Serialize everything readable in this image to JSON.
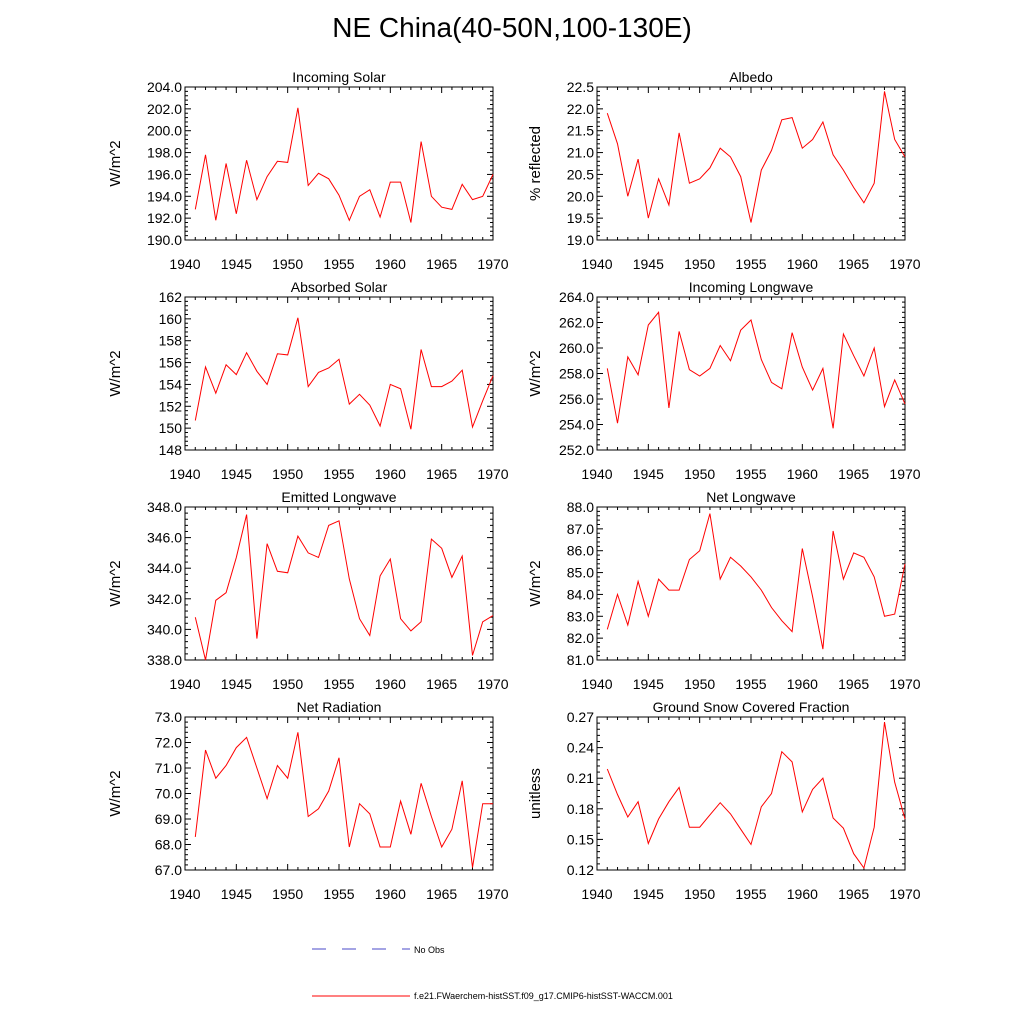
{
  "figure": {
    "title": "NE China(40-50N,100-130E)",
    "line_color": "#ff0000",
    "obs_color": "#4a4ac8"
  },
  "legend": {
    "obs_label": "No Obs",
    "model_label": "f.e21.FWaerchem-histSST.f09_g17.CMIP6-histSST-WACCM.001"
  },
  "chart_data": [
    {
      "type": "line",
      "title": "Incoming Solar",
      "ylabel": "W/m^2",
      "xlim": [
        1940,
        1970
      ],
      "ylim": [
        190,
        204
      ],
      "yticks": [
        190,
        192,
        194,
        196,
        198,
        200,
        202,
        204
      ],
      "ytick_labels": [
        "190.0",
        "192.0",
        "194.0",
        "196.0",
        "198.0",
        "200.0",
        "202.0",
        "204.0"
      ],
      "xticks": [
        1940,
        1945,
        1950,
        1955,
        1960,
        1965,
        1970
      ],
      "x": [
        1941,
        1942,
        1943,
        1944,
        1945,
        1946,
        1947,
        1948,
        1949,
        1950,
        1951,
        1952,
        1953,
        1954,
        1955,
        1956,
        1957,
        1958,
        1959,
        1960,
        1961,
        1962,
        1963,
        1964,
        1965,
        1966,
        1967,
        1968,
        1969,
        1970
      ],
      "values": [
        192.8,
        197.8,
        191.8,
        197.0,
        192.4,
        197.3,
        193.7,
        195.8,
        197.2,
        197.1,
        202.1,
        195.0,
        196.1,
        195.6,
        194.1,
        191.8,
        194.0,
        194.6,
        192.1,
        195.3,
        195.3,
        191.6,
        199.0,
        194.0,
        193.0,
        192.8,
        195.1,
        193.7,
        194.0,
        196.0
      ]
    },
    {
      "type": "line",
      "title": "Albedo",
      "ylabel": "% reflected",
      "xlim": [
        1940,
        1970
      ],
      "ylim": [
        19.0,
        22.5
      ],
      "yticks": [
        19.0,
        19.5,
        20.0,
        20.5,
        21.0,
        21.5,
        22.0,
        22.5
      ],
      "ytick_labels": [
        "19.0",
        "19.5",
        "20.0",
        "20.5",
        "21.0",
        "21.5",
        "22.0",
        "22.5"
      ],
      "xticks": [
        1940,
        1945,
        1950,
        1955,
        1960,
        1965,
        1970
      ],
      "x": [
        1941,
        1942,
        1943,
        1944,
        1945,
        1946,
        1947,
        1948,
        1949,
        1950,
        1951,
        1952,
        1953,
        1954,
        1955,
        1956,
        1957,
        1958,
        1959,
        1960,
        1961,
        1962,
        1963,
        1964,
        1965,
        1966,
        1967,
        1968,
        1969,
        1970
      ],
      "values": [
        21.9,
        21.2,
        20.0,
        20.85,
        19.5,
        20.4,
        19.8,
        21.45,
        20.3,
        20.4,
        20.65,
        21.1,
        20.9,
        20.45,
        19.4,
        20.6,
        21.05,
        21.75,
        21.8,
        21.1,
        21.3,
        21.7,
        20.95,
        20.6,
        20.2,
        19.85,
        20.3,
        22.4,
        21.3,
        20.9
      ]
    },
    {
      "type": "line",
      "title": "Absorbed Solar",
      "ylabel": "W/m^2",
      "xlim": [
        1940,
        1970
      ],
      "ylim": [
        148,
        162
      ],
      "yticks": [
        148,
        150,
        152,
        154,
        156,
        158,
        160,
        162
      ],
      "ytick_labels": [
        "148",
        "150",
        "152",
        "154",
        "156",
        "158",
        "160",
        "162"
      ],
      "xticks": [
        1940,
        1945,
        1950,
        1955,
        1960,
        1965,
        1970
      ],
      "x": [
        1941,
        1942,
        1943,
        1944,
        1945,
        1946,
        1947,
        1948,
        1949,
        1950,
        1951,
        1952,
        1953,
        1954,
        1955,
        1956,
        1957,
        1958,
        1959,
        1960,
        1961,
        1962,
        1963,
        1964,
        1965,
        1966,
        1967,
        1968,
        1969,
        1970
      ],
      "values": [
        150.7,
        155.6,
        153.2,
        155.8,
        154.9,
        156.9,
        155.2,
        154.0,
        156.8,
        156.7,
        160.1,
        153.8,
        155.1,
        155.5,
        156.3,
        152.2,
        153.1,
        152.1,
        150.2,
        154.0,
        153.6,
        149.9,
        157.2,
        153.8,
        153.8,
        154.3,
        155.3,
        150.1,
        152.5,
        154.8
      ]
    },
    {
      "type": "line",
      "title": "Incoming Longwave",
      "ylabel": "W/m^2",
      "xlim": [
        1940,
        1970
      ],
      "ylim": [
        252,
        264
      ],
      "yticks": [
        252,
        254,
        256,
        258,
        260,
        262,
        264
      ],
      "ytick_labels": [
        "252.0",
        "254.0",
        "256.0",
        "258.0",
        "260.0",
        "262.0",
        "264.0"
      ],
      "xticks": [
        1940,
        1945,
        1950,
        1955,
        1960,
        1965,
        1970
      ],
      "x": [
        1941,
        1942,
        1943,
        1944,
        1945,
        1946,
        1947,
        1948,
        1949,
        1950,
        1951,
        1952,
        1953,
        1954,
        1955,
        1956,
        1957,
        1958,
        1959,
        1960,
        1961,
        1962,
        1963,
        1964,
        1965,
        1966,
        1967,
        1968,
        1969,
        1970
      ],
      "values": [
        258.4,
        254.1,
        259.3,
        257.9,
        261.8,
        262.8,
        255.3,
        261.3,
        258.3,
        257.8,
        258.4,
        260.2,
        259.0,
        261.4,
        262.2,
        259.1,
        257.3,
        256.8,
        261.2,
        258.5,
        256.7,
        258.4,
        253.7,
        261.1,
        259.4,
        257.8,
        260.0,
        255.4,
        257.5,
        255.6
      ]
    },
    {
      "type": "line",
      "title": "Emitted Longwave",
      "ylabel": "W/m^2",
      "xlim": [
        1940,
        1970
      ],
      "ylim": [
        338,
        348
      ],
      "yticks": [
        338,
        340,
        342,
        344,
        346,
        348
      ],
      "ytick_labels": [
        "338.0",
        "340.0",
        "342.0",
        "344.0",
        "346.0",
        "348.0"
      ],
      "xticks": [
        1940,
        1945,
        1950,
        1955,
        1960,
        1965,
        1970
      ],
      "x": [
        1941,
        1942,
        1943,
        1944,
        1945,
        1946,
        1947,
        1948,
        1949,
        1950,
        1951,
        1952,
        1953,
        1954,
        1955,
        1956,
        1957,
        1958,
        1959,
        1960,
        1961,
        1962,
        1963,
        1964,
        1965,
        1966,
        1967,
        1968,
        1969,
        1970
      ],
      "values": [
        340.8,
        338.0,
        341.9,
        342.4,
        344.7,
        347.5,
        339.4,
        345.6,
        343.8,
        343.7,
        346.1,
        345.0,
        344.7,
        346.8,
        347.1,
        343.3,
        340.7,
        339.6,
        343.5,
        344.6,
        340.7,
        339.9,
        340.5,
        345.9,
        345.3,
        343.4,
        344.8,
        338.3,
        340.5,
        340.9
      ]
    },
    {
      "type": "line",
      "title": "Net Longwave",
      "ylabel": "W/m^2",
      "xlim": [
        1940,
        1970
      ],
      "ylim": [
        81,
        88
      ],
      "yticks": [
        81,
        82,
        83,
        84,
        85,
        86,
        87,
        88
      ],
      "ytick_labels": [
        "81.0",
        "82.0",
        "83.0",
        "84.0",
        "85.0",
        "86.0",
        "87.0",
        "88.0"
      ],
      "xticks": [
        1940,
        1945,
        1950,
        1955,
        1960,
        1965,
        1970
      ],
      "x": [
        1941,
        1942,
        1943,
        1944,
        1945,
        1946,
        1947,
        1948,
        1949,
        1950,
        1951,
        1952,
        1953,
        1954,
        1955,
        1956,
        1957,
        1958,
        1959,
        1960,
        1961,
        1962,
        1963,
        1964,
        1965,
        1966,
        1967,
        1968,
        1969,
        1970
      ],
      "values": [
        82.4,
        84.0,
        82.6,
        84.6,
        83.0,
        84.7,
        84.2,
        84.2,
        85.6,
        86.0,
        87.7,
        84.7,
        85.7,
        85.3,
        84.8,
        84.2,
        83.4,
        82.8,
        82.3,
        86.1,
        83.9,
        81.5,
        86.9,
        84.7,
        85.9,
        85.7,
        84.8,
        83.0,
        83.1,
        85.4
      ]
    },
    {
      "type": "line",
      "title": "Net Radiation",
      "ylabel": "W/m^2",
      "xlim": [
        1940,
        1970
      ],
      "ylim": [
        67,
        73
      ],
      "yticks": [
        67,
        68,
        69,
        70,
        71,
        72,
        73
      ],
      "ytick_labels": [
        "67.0",
        "68.0",
        "69.0",
        "70.0",
        "71.0",
        "72.0",
        "73.0"
      ],
      "xticks": [
        1940,
        1945,
        1950,
        1955,
        1960,
        1965,
        1970
      ],
      "x": [
        1941,
        1942,
        1943,
        1944,
        1945,
        1946,
        1947,
        1948,
        1949,
        1950,
        1951,
        1952,
        1953,
        1954,
        1955,
        1956,
        1957,
        1958,
        1959,
        1960,
        1961,
        1962,
        1963,
        1964,
        1965,
        1966,
        1967,
        1968,
        1969,
        1970
      ],
      "values": [
        68.3,
        71.7,
        70.6,
        71.1,
        71.8,
        72.2,
        71.0,
        69.8,
        71.1,
        70.6,
        72.4,
        69.1,
        69.4,
        70.1,
        71.4,
        67.9,
        69.6,
        69.2,
        67.9,
        67.9,
        69.7,
        68.4,
        70.4,
        69.1,
        67.9,
        68.6,
        70.5,
        67.1,
        69.6,
        69.6
      ]
    },
    {
      "type": "line",
      "title": "Ground Snow Covered Fraction",
      "ylabel": "unitless",
      "xlim": [
        1940,
        1970
      ],
      "ylim": [
        0.12,
        0.27
      ],
      "yticks": [
        0.12,
        0.15,
        0.18,
        0.21,
        0.24,
        0.27
      ],
      "ytick_labels": [
        "0.12",
        "0.15",
        "0.18",
        "0.21",
        "0.24",
        "0.27"
      ],
      "xticks": [
        1940,
        1945,
        1950,
        1955,
        1960,
        1965,
        1970
      ],
      "x": [
        1941,
        1942,
        1943,
        1944,
        1945,
        1946,
        1947,
        1948,
        1949,
        1950,
        1951,
        1952,
        1953,
        1954,
        1955,
        1956,
        1957,
        1958,
        1959,
        1960,
        1961,
        1962,
        1963,
        1964,
        1965,
        1966,
        1967,
        1968,
        1969,
        1970
      ],
      "values": [
        0.219,
        0.194,
        0.172,
        0.187,
        0.146,
        0.17,
        0.187,
        0.201,
        0.162,
        0.162,
        0.174,
        0.186,
        0.175,
        0.16,
        0.145,
        0.182,
        0.195,
        0.236,
        0.226,
        0.177,
        0.199,
        0.21,
        0.171,
        0.161,
        0.136,
        0.122,
        0.162,
        0.265,
        0.206,
        0.17
      ]
    }
  ]
}
